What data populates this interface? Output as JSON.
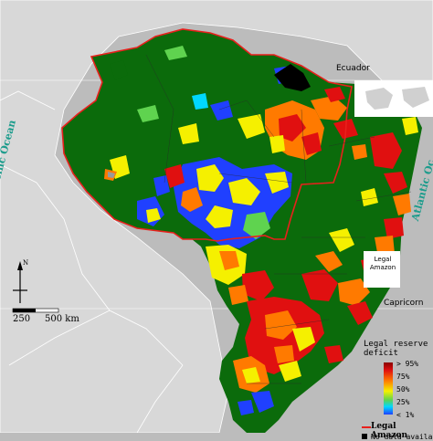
{
  "labels": {
    "equator": "Ecuador",
    "capricorn": "Capricorn",
    "pacific_ocean": "Pacific Ocean",
    "atlantic_ocean": "Atlantic Oc",
    "inset_legal_amazon": "Legal\nAmazon",
    "scale_0": "250",
    "scale_1": "500 km",
    "north": "N"
  },
  "legend": {
    "title": "Legal reserve\ndeficit",
    "ticks": [
      "> 95%",
      "75%",
      "50%",
      "25%",
      "< 1%"
    ],
    "legal_amazon": "Legal Amazon",
    "no_data": "No data availab"
  },
  "colors": {
    "background": "#bcbcbc",
    "forest_green": "#0b6b0b",
    "red": "#e01010",
    "orange": "#ff7a00",
    "yellow": "#f5f000",
    "light_green": "#5fd34f",
    "blue": "#2040ff",
    "cyan": "#00d8ff",
    "amazon_border": "#e8201c",
    "ocean_label": "#1c9c8c",
    "no_data": "#000000"
  }
}
